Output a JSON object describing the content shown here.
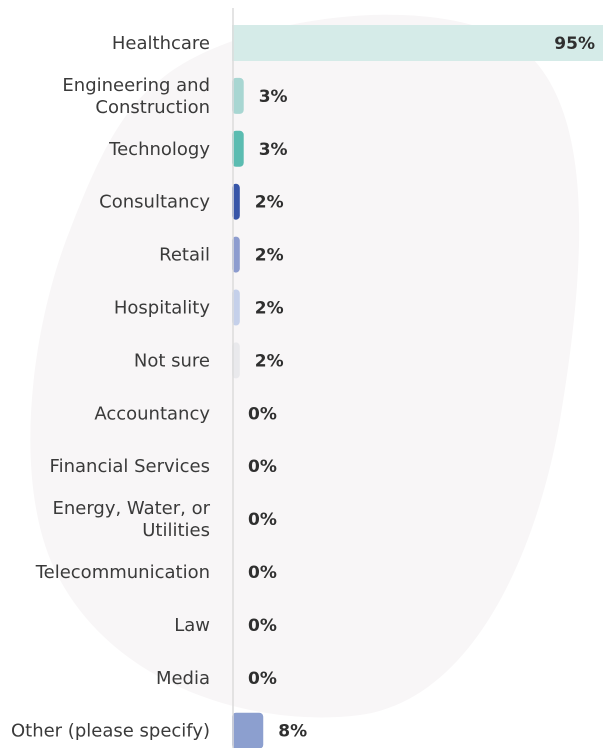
{
  "chart_data": {
    "type": "bar",
    "orientation": "horizontal",
    "categories": [
      "Healthcare",
      "Engineering and\nConstruction",
      "Technology",
      "Consultancy",
      "Retail",
      "Hospitality",
      "Not sure",
      "Accountancy",
      "Financial Services",
      "Energy, Water, or\nUtilities",
      "Telecommunication",
      "Law",
      "Media",
      "Other (please specify)"
    ],
    "values": [
      95,
      3,
      3,
      2,
      2,
      2,
      2,
      0,
      0,
      0,
      0,
      0,
      0,
      8
    ],
    "value_labels": [
      "95%",
      "3%",
      "3%",
      "2%",
      "2%",
      "2%",
      "2%",
      "0%",
      "0%",
      "0%",
      "0%",
      "0%",
      "0%",
      "8%"
    ],
    "bar_colors": [
      "#d5ebe8",
      "#a8d6d2",
      "#5bbcb1",
      "#3755a8",
      "#8d9ccf",
      "#c5d0ea",
      "#e9e9ec",
      "#cccccc",
      "#cccccc",
      "#cccccc",
      "#cccccc",
      "#cccccc",
      "#cccccc",
      "#8c9fcf"
    ],
    "xlim": [
      0,
      95
    ],
    "grid": false,
    "title": "",
    "xlabel": "",
    "ylabel": ""
  },
  "colors": {
    "axis_line": "#dcdcdc",
    "background_blob": "#f8f6f7",
    "label_text": "#3a3a3a",
    "value_text": "#2f2f2f"
  }
}
